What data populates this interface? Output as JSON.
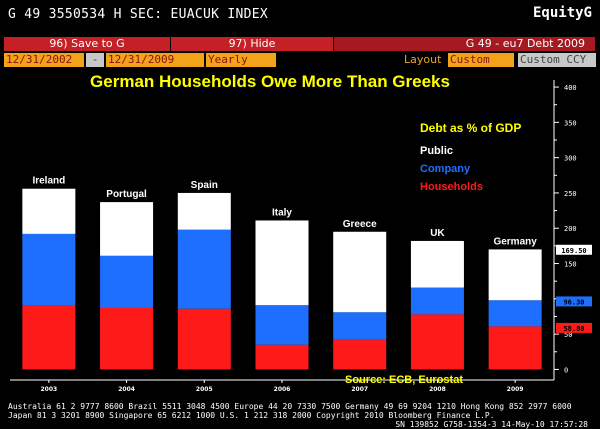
{
  "topbar": {
    "command": "G 49 3550534 H SEC: EUACUK INDEX",
    "brand": "EquityG"
  },
  "menubar": {
    "save": "96) Save to G",
    "hide": "97) Hide",
    "title": "G 49 - eu7 Debt 2009"
  },
  "controls": {
    "start_date": "12/31/2002",
    "dash": "-",
    "end_date": "12/31/2009",
    "period": "Yearly",
    "layout_label": "Layout",
    "layout_value": "Custom",
    "currency": "Custom CCY"
  },
  "chart_data": {
    "type": "bar",
    "title": "German Households Owe More Than Greeks",
    "legend_title": "Debt as % of GDP",
    "source": "Source: ECB, Eurostat",
    "categories": [
      "Ireland",
      "Portugal",
      "Spain",
      "Italy",
      "Greece",
      "UK",
      "Germany"
    ],
    "years": [
      "2003",
      "2004",
      "2005",
      "2006",
      "2007",
      "2008",
      "2009"
    ],
    "series": [
      {
        "name": "Households",
        "color": "#ff1a1a",
        "values": [
          90,
          87,
          86,
          35,
          43,
          78,
          61
        ]
      },
      {
        "name": "Company",
        "color": "#1f6fff",
        "values": [
          102,
          74,
          112,
          56,
          38,
          38,
          37
        ]
      },
      {
        "name": "Public",
        "color": "#ffffff",
        "values": [
          64,
          76,
          52,
          120,
          114,
          66,
          72
        ]
      }
    ],
    "ylim": [
      -15,
      410
    ],
    "yticks": [
      0,
      50,
      100,
      150,
      200,
      250,
      300,
      350,
      400
    ],
    "ytick_labels": [
      "0",
      "50",
      "100",
      "150",
      "200",
      "250",
      "300",
      "350",
      "400"
    ],
    "markers": [
      {
        "label": "169.50",
        "value": 169.5,
        "bg": "#ffffff",
        "fg": "#000000"
      },
      {
        "label": "96.30",
        "value": 96.3,
        "bg": "#1f6fff",
        "fg": "#000000"
      },
      {
        "label": "58.80",
        "value": 58.8,
        "bg": "#ff1a1a",
        "fg": "#000000"
      }
    ],
    "colors": {
      "title": "#ffff00",
      "legend_title": "#ffff00",
      "source": "#ffff00",
      "background": "#000000"
    }
  },
  "footer": {
    "line1": "Australia 61 2 9777 8600 Brazil 5511 3048 4500 Europe 44 20 7330 7500 Germany 49 69 9204 1210 Hong Kong 852 2977 6000",
    "line2": "Japan 81 3 3201 8900      Singapore 65 6212 1000      U.S. 1 212 318 2000        Copyright 2010 Bloomberg Finance L.P.",
    "line3": "SN 139852 G758-1354-3 14-May-10 17:57:28"
  }
}
